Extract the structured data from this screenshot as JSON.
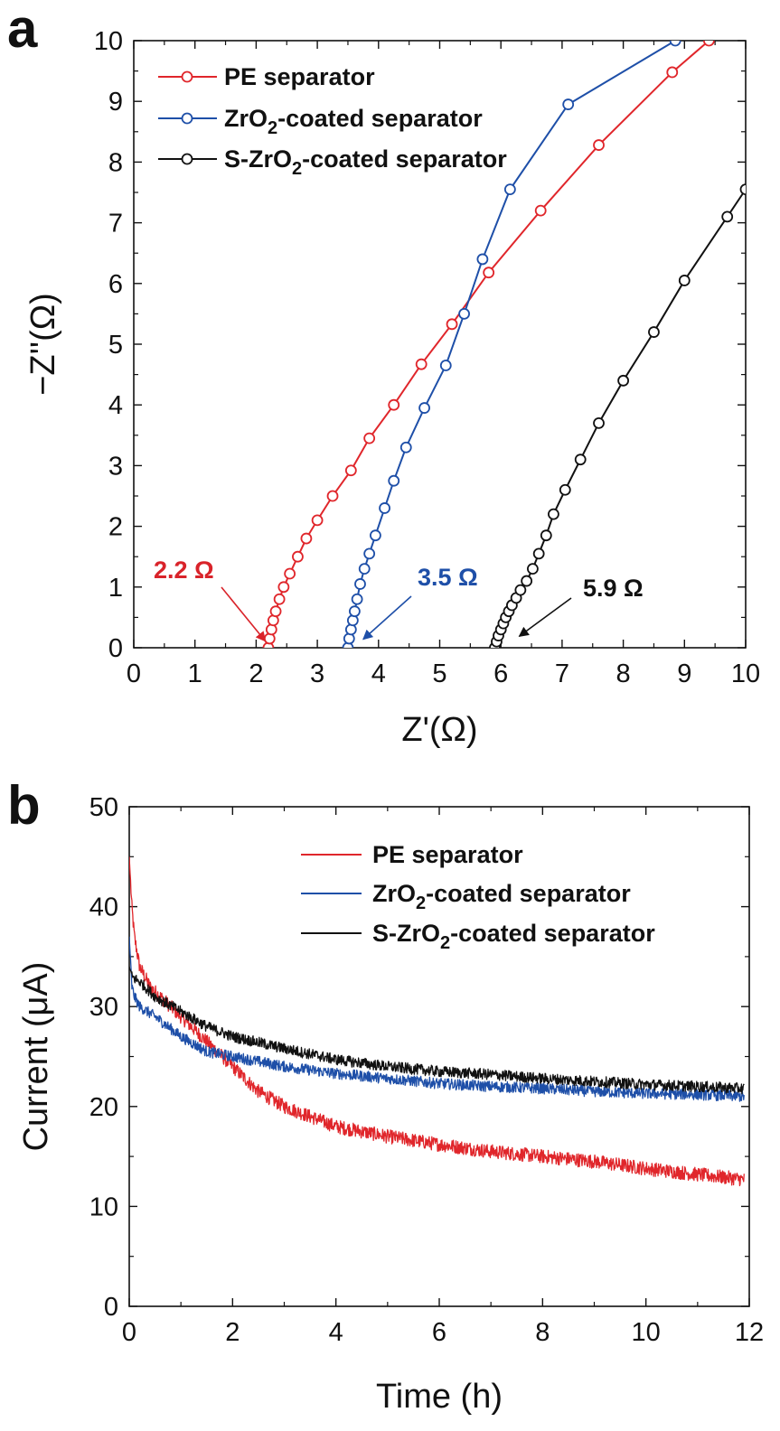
{
  "chart_data": [
    {
      "type": "line",
      "panel": "a",
      "title": "",
      "xlabel": "Z'(Ω)",
      "ylabel": "−Z''(Ω)",
      "xlim": [
        0,
        10
      ],
      "ylim": [
        0,
        10
      ],
      "xticks": [
        0,
        1,
        2,
        3,
        4,
        5,
        6,
        7,
        8,
        9,
        10
      ],
      "yticks": [
        0,
        1,
        2,
        3,
        4,
        5,
        6,
        7,
        8,
        9,
        10
      ],
      "grid": false,
      "legend_position": "top-left",
      "markers": "open-circle",
      "series": [
        {
          "name": "PE separator",
          "name_parts": [
            "PE separator"
          ],
          "color": "#e0262b",
          "points": [
            [
              2.2,
              0
            ],
            [
              2.22,
              0.15
            ],
            [
              2.25,
              0.3
            ],
            [
              2.28,
              0.45
            ],
            [
              2.32,
              0.6
            ],
            [
              2.38,
              0.8
            ],
            [
              2.45,
              1.0
            ],
            [
              2.55,
              1.22
            ],
            [
              2.68,
              1.5
            ],
            [
              2.82,
              1.8
            ],
            [
              3.0,
              2.1
            ],
            [
              3.25,
              2.5
            ],
            [
              3.55,
              2.92
            ],
            [
              3.85,
              3.45
            ],
            [
              4.25,
              4.0
            ],
            [
              4.7,
              4.67
            ],
            [
              5.2,
              5.33
            ],
            [
              5.8,
              6.18
            ],
            [
              6.65,
              7.2
            ],
            [
              7.6,
              8.28
            ],
            [
              8.8,
              9.48
            ],
            [
              9.4,
              10.0
            ]
          ]
        },
        {
          "name": "ZrO2-coated separator",
          "name_parts": [
            "ZrO",
            "2",
            "-coated separator"
          ],
          "color": "#1e4fa8",
          "points": [
            [
              3.5,
              0
            ],
            [
              3.52,
              0.15
            ],
            [
              3.55,
              0.3
            ],
            [
              3.58,
              0.45
            ],
            [
              3.61,
              0.6
            ],
            [
              3.65,
              0.8
            ],
            [
              3.7,
              1.05
            ],
            [
              3.77,
              1.3
            ],
            [
              3.85,
              1.55
            ],
            [
              3.95,
              1.85
            ],
            [
              4.1,
              2.3
            ],
            [
              4.25,
              2.75
            ],
            [
              4.45,
              3.3
            ],
            [
              4.75,
              3.95
            ],
            [
              5.1,
              4.65
            ],
            [
              5.4,
              5.5
            ],
            [
              5.7,
              6.4
            ],
            [
              6.15,
              7.55
            ],
            [
              7.1,
              8.95
            ],
            [
              8.85,
              10.0
            ]
          ]
        },
        {
          "name": "S-ZrO2-coated separator",
          "name_parts": [
            "S-ZrO",
            "2",
            "-coated separator"
          ],
          "color": "#111111",
          "points": [
            [
              5.9,
              0
            ],
            [
              5.93,
              0.1
            ],
            [
              5.96,
              0.2
            ],
            [
              6.0,
              0.3
            ],
            [
              6.04,
              0.4
            ],
            [
              6.08,
              0.5
            ],
            [
              6.13,
              0.6
            ],
            [
              6.18,
              0.7
            ],
            [
              6.25,
              0.82
            ],
            [
              6.32,
              0.95
            ],
            [
              6.42,
              1.1
            ],
            [
              6.52,
              1.3
            ],
            [
              6.62,
              1.55
            ],
            [
              6.74,
              1.85
            ],
            [
              6.86,
              2.2
            ],
            [
              7.05,
              2.6
            ],
            [
              7.3,
              3.1
            ],
            [
              7.6,
              3.7
            ],
            [
              8.0,
              4.4
            ],
            [
              8.5,
              5.2
            ],
            [
              9.0,
              6.05
            ],
            [
              9.7,
              7.1
            ],
            [
              10.0,
              7.55
            ]
          ]
        }
      ],
      "annotations": [
        {
          "text": "2.2 Ω",
          "color": "#d9232a",
          "points_to": [
            2.15,
            0.02
          ]
        },
        {
          "text": "3.5 Ω",
          "color": "#1e4fa8",
          "points_to": [
            3.75,
            0.05
          ]
        },
        {
          "text": "5.9 Ω",
          "color": "#111111",
          "points_to": [
            6.3,
            0.1
          ]
        }
      ]
    },
    {
      "type": "line",
      "panel": "b",
      "title": "",
      "xlabel": "Time (h)",
      "ylabel": "Current (μA)",
      "xlim": [
        0,
        12
      ],
      "ylim": [
        0,
        50
      ],
      "xticks": [
        0,
        2,
        4,
        6,
        8,
        10,
        12
      ],
      "yticks": [
        0,
        10,
        20,
        30,
        40,
        50
      ],
      "grid": false,
      "legend_position": "top-right",
      "noise": true,
      "series": [
        {
          "name": "PE separator",
          "name_parts": [
            "PE separator"
          ],
          "color": "#e0262b",
          "x": [
            0,
            0.05,
            0.1,
            0.2,
            0.4,
            0.7,
            1.0,
            1.5,
            2.0,
            2.5,
            3.0,
            4.0,
            5.0,
            6.0,
            7.0,
            8.0,
            9.0,
            10.0,
            11.0,
            11.9
          ],
          "y": [
            45,
            40,
            37,
            34,
            32,
            30.5,
            29,
            26.5,
            24,
            21.5,
            20,
            18,
            17,
            16.2,
            15.5,
            15,
            14.5,
            13.8,
            13.2,
            12.7
          ]
        },
        {
          "name": "ZrO2-coated separator",
          "name_parts": [
            "ZrO",
            "2",
            "-coated separator"
          ],
          "color": "#1e4fa8",
          "x": [
            0,
            0.05,
            0.1,
            0.2,
            0.5,
            1.0,
            1.5,
            2.0,
            3.0,
            4.0,
            5.0,
            6.0,
            7.0,
            8.0,
            9.0,
            10.0,
            11.0,
            11.9
          ],
          "y": [
            37,
            32,
            31,
            30,
            29,
            27,
            25.5,
            25,
            24,
            23.3,
            22.8,
            22.3,
            22,
            21.8,
            21.5,
            21.3,
            21.2,
            21.0
          ]
        },
        {
          "name": "S-ZrO2-coated separator",
          "name_parts": [
            "S-ZrO",
            "2",
            "-coated separator"
          ],
          "color": "#111111",
          "x": [
            0,
            0.05,
            0.1,
            0.2,
            0.5,
            1.0,
            1.5,
            2.0,
            3.0,
            4.0,
            5.0,
            6.0,
            7.0,
            8.0,
            9.0,
            10.0,
            11.0,
            11.9
          ],
          "y": [
            34,
            33,
            32.8,
            32.5,
            31,
            29.5,
            28,
            27,
            25.8,
            24.7,
            24,
            23.5,
            23.2,
            22.8,
            22.5,
            22.2,
            22.0,
            21.8
          ]
        }
      ]
    }
  ],
  "panels": {
    "a": {
      "letter": "a"
    },
    "b": {
      "letter": "b"
    }
  }
}
